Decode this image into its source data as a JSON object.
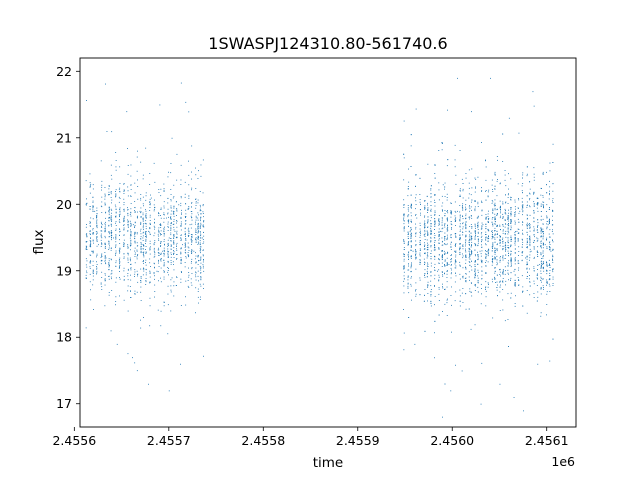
{
  "chart_data": {
    "type": "scatter",
    "title": "1SWASPJ124310.80-561740.6",
    "xlabel": "time",
    "ylabel": "flux",
    "x_offset_label": "1e6",
    "xlim": [
      2455606,
      2456131
    ],
    "ylim": [
      16.65,
      22.2
    ],
    "xticks": [
      2455600,
      2455700,
      2455800,
      2455900,
      2456000,
      2456100
    ],
    "xtick_labels": [
      "2.4556",
      "2.4557",
      "2.4558",
      "2.4559",
      "2.4560",
      "2.4561"
    ],
    "yticks": [
      17,
      18,
      19,
      20,
      21,
      22
    ],
    "ytick_labels": [
      "17",
      "18",
      "19",
      "20",
      "21",
      "22"
    ],
    "grid": false,
    "legend": "none",
    "point_color": "#1f77b4",
    "series": [
      {
        "points": [
          [
            2455616.0,
            19.6
          ],
          [
            2455618.0,
            19.3
          ],
          [
            2455621.0,
            19.9
          ],
          [
            2455625.0,
            19.4
          ],
          [
            2455629.0,
            19.7
          ],
          [
            2455633.0,
            19.2
          ],
          [
            2455637.0,
            19.8
          ],
          [
            2455641.0,
            19.5
          ],
          [
            2455644.0,
            18.9
          ],
          [
            2455648.0,
            19.6
          ],
          [
            2455652.0,
            20.2
          ],
          [
            2455656.0,
            19.4
          ],
          [
            2455659.0,
            19.1
          ],
          [
            2455662.0,
            19.7
          ],
          [
            2455666.0,
            19.3
          ],
          [
            2455669.0,
            19.9
          ],
          [
            2455672.0,
            19.5
          ],
          [
            2455675.0,
            18.8
          ],
          [
            2455678.0,
            19.6
          ],
          [
            2455681.0,
            20.1
          ],
          [
            2455684.0,
            19.4
          ],
          [
            2455687.0,
            19.0
          ],
          [
            2455690.0,
            19.7
          ],
          [
            2455693.0,
            19.3
          ],
          [
            2455697.0,
            19.8
          ],
          [
            2455700.0,
            19.5
          ],
          [
            2455703.0,
            18.9
          ],
          [
            2455706.0,
            19.6
          ],
          [
            2455710.0,
            20.0
          ],
          [
            2455714.0,
            19.4
          ],
          [
            2455718.0,
            19.2
          ],
          [
            2455722.0,
            19.7
          ],
          [
            2455726.0,
            19.3
          ],
          [
            2455730.0,
            19.8
          ],
          [
            2455735.0,
            19.5
          ],
          [
            2455634.0,
            21.1
          ],
          [
            2455655.0,
            21.4
          ],
          [
            2455690.0,
            21.5
          ],
          [
            2455703.0,
            21.0
          ],
          [
            2455661.0,
            17.7
          ],
          [
            2455678.0,
            17.3
          ],
          [
            2455700.0,
            17.2
          ],
          [
            2455712.0,
            17.6
          ],
          [
            2455645.0,
            17.9
          ],
          [
            2455955.0,
            19.6
          ],
          [
            2455958.0,
            19.3
          ],
          [
            2455962.0,
            19.8
          ],
          [
            2455966.0,
            19.4
          ],
          [
            2455970.0,
            19.7
          ],
          [
            2455973.0,
            19.2
          ],
          [
            2455977.0,
            19.9
          ],
          [
            2455981.0,
            19.5
          ],
          [
            2455984.0,
            19.0
          ],
          [
            2455987.0,
            19.6
          ],
          [
            2455990.0,
            20.3
          ],
          [
            2455993.0,
            19.4
          ],
          [
            2455996.0,
            19.1
          ],
          [
            2455999.0,
            19.7
          ],
          [
            2456002.0,
            19.3
          ],
          [
            2456005.0,
            19.9
          ],
          [
            2456008.0,
            19.5
          ],
          [
            2456011.0,
            18.9
          ],
          [
            2456014.0,
            19.6
          ],
          [
            2456017.0,
            20.1
          ],
          [
            2456020.0,
            19.4
          ],
          [
            2456023.0,
            19.0
          ],
          [
            2456026.0,
            19.8
          ],
          [
            2456029.0,
            19.3
          ],
          [
            2456032.0,
            19.7
          ],
          [
            2456035.0,
            19.5
          ],
          [
            2456038.0,
            18.8
          ],
          [
            2456041.0,
            19.6
          ],
          [
            2456044.0,
            20.0
          ],
          [
            2456047.0,
            19.4
          ],
          [
            2456050.0,
            19.2
          ],
          [
            2456053.0,
            19.7
          ],
          [
            2456056.0,
            19.3
          ],
          [
            2456059.0,
            19.8
          ],
          [
            2456062.0,
            19.5
          ],
          [
            2456065.0,
            19.0
          ],
          [
            2456068.0,
            19.6
          ],
          [
            2456071.0,
            19.9
          ],
          [
            2456074.0,
            19.4
          ],
          [
            2456077.0,
            19.2
          ],
          [
            2456080.0,
            19.7
          ],
          [
            2456083.0,
            19.3
          ],
          [
            2456086.0,
            19.8
          ],
          [
            2456089.0,
            19.5
          ],
          [
            2456092.0,
            19.1
          ],
          [
            2456095.0,
            19.6
          ],
          [
            2456098.0,
            19.4
          ],
          [
            2456101.0,
            19.7
          ],
          [
            2456104.0,
            19.3
          ],
          [
            2456005.0,
            21.9
          ],
          [
            2456040.0,
            21.9
          ],
          [
            2456060.0,
            21.3
          ],
          [
            2456085.0,
            21.7
          ],
          [
            2456020.0,
            21.4
          ],
          [
            2455998.0,
            17.2
          ],
          [
            2456030.0,
            17.0
          ],
          [
            2456050.0,
            17.3
          ],
          [
            2456065.0,
            17.1
          ],
          [
            2456075.0,
            16.9
          ],
          [
            2456090.0,
            17.6
          ],
          [
            2455960.0,
            17.9
          ],
          [
            2456010.0,
            17.5
          ]
        ]
      }
    ],
    "clusters": [
      {
        "x_range": [
          2455612,
          2455738
        ],
        "center": 19.5,
        "spread": 0.42,
        "count": 1500
      },
      {
        "x_range": [
          2455948,
          2456108
        ],
        "center": 19.45,
        "spread": 0.45,
        "count": 2400
      }
    ]
  }
}
